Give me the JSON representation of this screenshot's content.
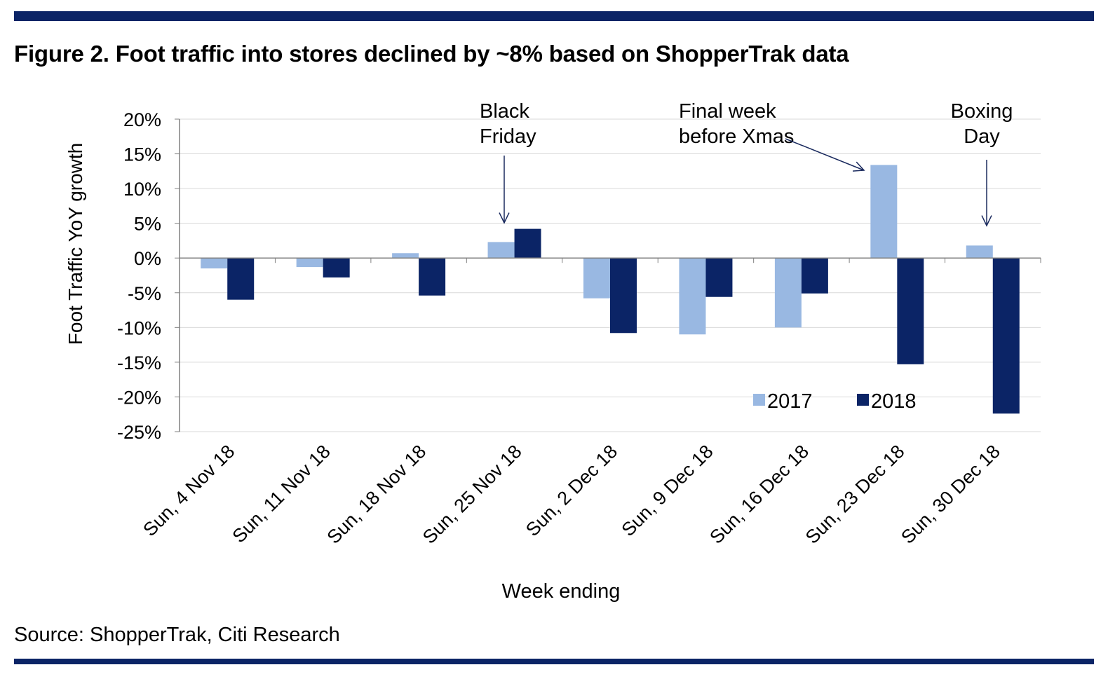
{
  "figure_title": "Figure 2. Foot traffic into stores declined by ~8% based on ShopperTrak data",
  "source": "Source: ShopperTrak, Citi Research",
  "colors": {
    "rule": "#0b2466",
    "series_2017": "#99b8e2",
    "series_2018": "#0b2466",
    "grid": "#d9d9d9",
    "axis": "#808080"
  },
  "chart_data": {
    "type": "bar",
    "title": "Figure 2. Foot traffic into stores declined by ~8% based on ShopperTrak data",
    "xlabel": "Week ending",
    "ylabel": "Foot Traffic YoY growth",
    "ylim": [
      -25,
      20
    ],
    "yticks": [
      20,
      15,
      10,
      5,
      0,
      -5,
      -10,
      -15,
      -20,
      -25
    ],
    "ytick_labels": [
      "20%",
      "15%",
      "10%",
      "5%",
      "0%",
      "-5%",
      "-10%",
      "-15%",
      "-20%",
      "-25%"
    ],
    "grid": true,
    "categories": [
      "Sun, 4 Nov 18",
      "Sun, 11 Nov 18",
      "Sun, 18 Nov 18",
      "Sun, 25 Nov 18",
      "Sun, 2 Dec 18",
      "Sun, 9 Dec 18",
      "Sun, 16 Dec 18",
      "Sun, 23 Dec 18",
      "Sun, 30 Dec 18"
    ],
    "series": [
      {
        "name": "2017",
        "values": [
          -1.5,
          -1.3,
          0.7,
          2.3,
          -5.8,
          -11.0,
          -10.0,
          13.4,
          1.8
        ]
      },
      {
        "name": "2018",
        "values": [
          -6.0,
          -2.8,
          -5.4,
          4.2,
          -10.8,
          -5.6,
          -5.1,
          -15.3,
          -22.4
        ]
      }
    ],
    "legend_position": "bottom-right",
    "annotations": [
      {
        "name": "black-friday",
        "lines": [
          "Black",
          "Friday"
        ],
        "category": "Sun, 25 Nov 18"
      },
      {
        "name": "final-week-before-xmas",
        "lines": [
          "Final week",
          "before Xmas"
        ],
        "category": "Sun, 23 Dec 18"
      },
      {
        "name": "boxing-day",
        "lines": [
          "Boxing",
          "Day"
        ],
        "category": "Sun, 30 Dec 18"
      }
    ]
  }
}
